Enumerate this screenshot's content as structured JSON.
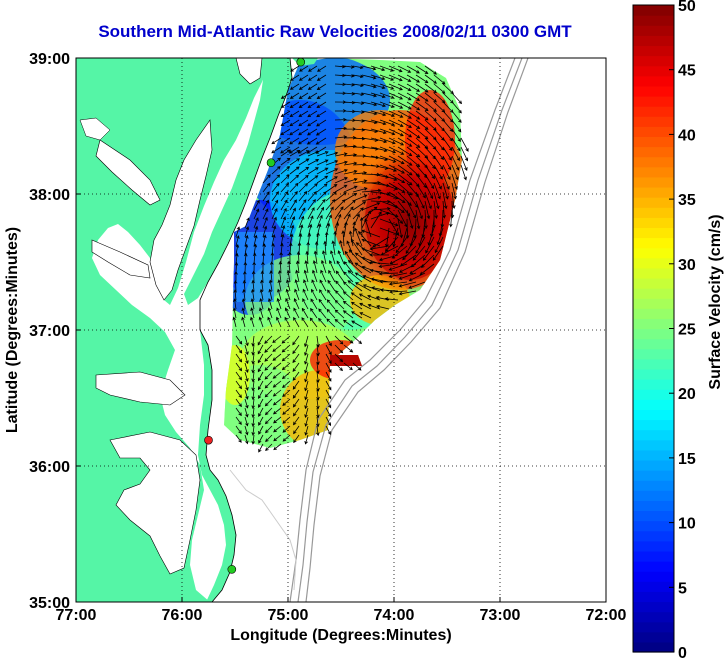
{
  "title": "Southern Mid-Atlantic Raw Velocities 2008/02/11 0300 GMT",
  "map": {
    "xlabel": "Longitude (Degrees:Minutes)",
    "ylabel": "Latitude (Degrees:Minutes)",
    "lon_range": [
      -77,
      -72
    ],
    "lat_range": [
      35,
      39
    ],
    "x_ticks": [
      {
        "value": -77,
        "label": "77:00"
      },
      {
        "value": -76,
        "label": "76:00"
      },
      {
        "value": -75,
        "label": "75:00"
      },
      {
        "value": -74,
        "label": "74:00"
      },
      {
        "value": -73,
        "label": "73:00"
      },
      {
        "value": -72,
        "label": "72:00"
      }
    ],
    "y_ticks": [
      {
        "value": 39,
        "label": "39:00"
      },
      {
        "value": 38,
        "label": "38:00"
      },
      {
        "value": 37,
        "label": "37:00"
      },
      {
        "value": 36,
        "label": "36:00"
      },
      {
        "value": 35,
        "label": "35:00"
      }
    ],
    "grid": "dotted",
    "land_color": "#55f5a6",
    "ocean_color": "#ffffff",
    "isobath_color": "#999999",
    "arrow_color": "#000000",
    "stations": [
      {
        "lon": -74.88,
        "lat": 38.97,
        "color": "#22cc22"
      },
      {
        "lon": -75.16,
        "lat": 38.23,
        "color": "#22cc22"
      },
      {
        "lon": -75.75,
        "lat": 36.19,
        "color": "#ee2222"
      },
      {
        "lon": -75.53,
        "lat": 35.24,
        "color": "#22cc22"
      }
    ]
  },
  "colorbar": {
    "label": "Surface Velocity (cm/s)",
    "min": 0,
    "max": 50,
    "ticks": [
      {
        "value": 0,
        "label": "0"
      },
      {
        "value": 5,
        "label": "5"
      },
      {
        "value": 10,
        "label": "10"
      },
      {
        "value": 15,
        "label": "15"
      },
      {
        "value": 20,
        "label": "20"
      },
      {
        "value": 25,
        "label": "25"
      },
      {
        "value": 30,
        "label": "30"
      },
      {
        "value": 35,
        "label": "35"
      },
      {
        "value": 40,
        "label": "40"
      },
      {
        "value": 45,
        "label": "45"
      },
      {
        "value": 50,
        "label": "50"
      }
    ],
    "colormap": "jet"
  },
  "velocity_field": {
    "units": "cm/s",
    "regions": [
      {
        "lon": -74.8,
        "lat": 38.4,
        "speed": 10
      },
      {
        "lon": -75.2,
        "lat": 37.6,
        "speed": 8
      },
      {
        "lon": -74.05,
        "lat": 37.75,
        "speed": 50
      },
      {
        "lon": -74.2,
        "lat": 37.35,
        "speed": 42
      },
      {
        "lon": -75.2,
        "lat": 37.0,
        "speed": 24
      },
      {
        "lon": -74.7,
        "lat": 36.6,
        "speed": 30
      },
      {
        "lon": -74.4,
        "lat": 36.4,
        "speed": 44
      },
      {
        "lon": -75.35,
        "lat": 36.65,
        "speed": 30
      }
    ]
  }
}
